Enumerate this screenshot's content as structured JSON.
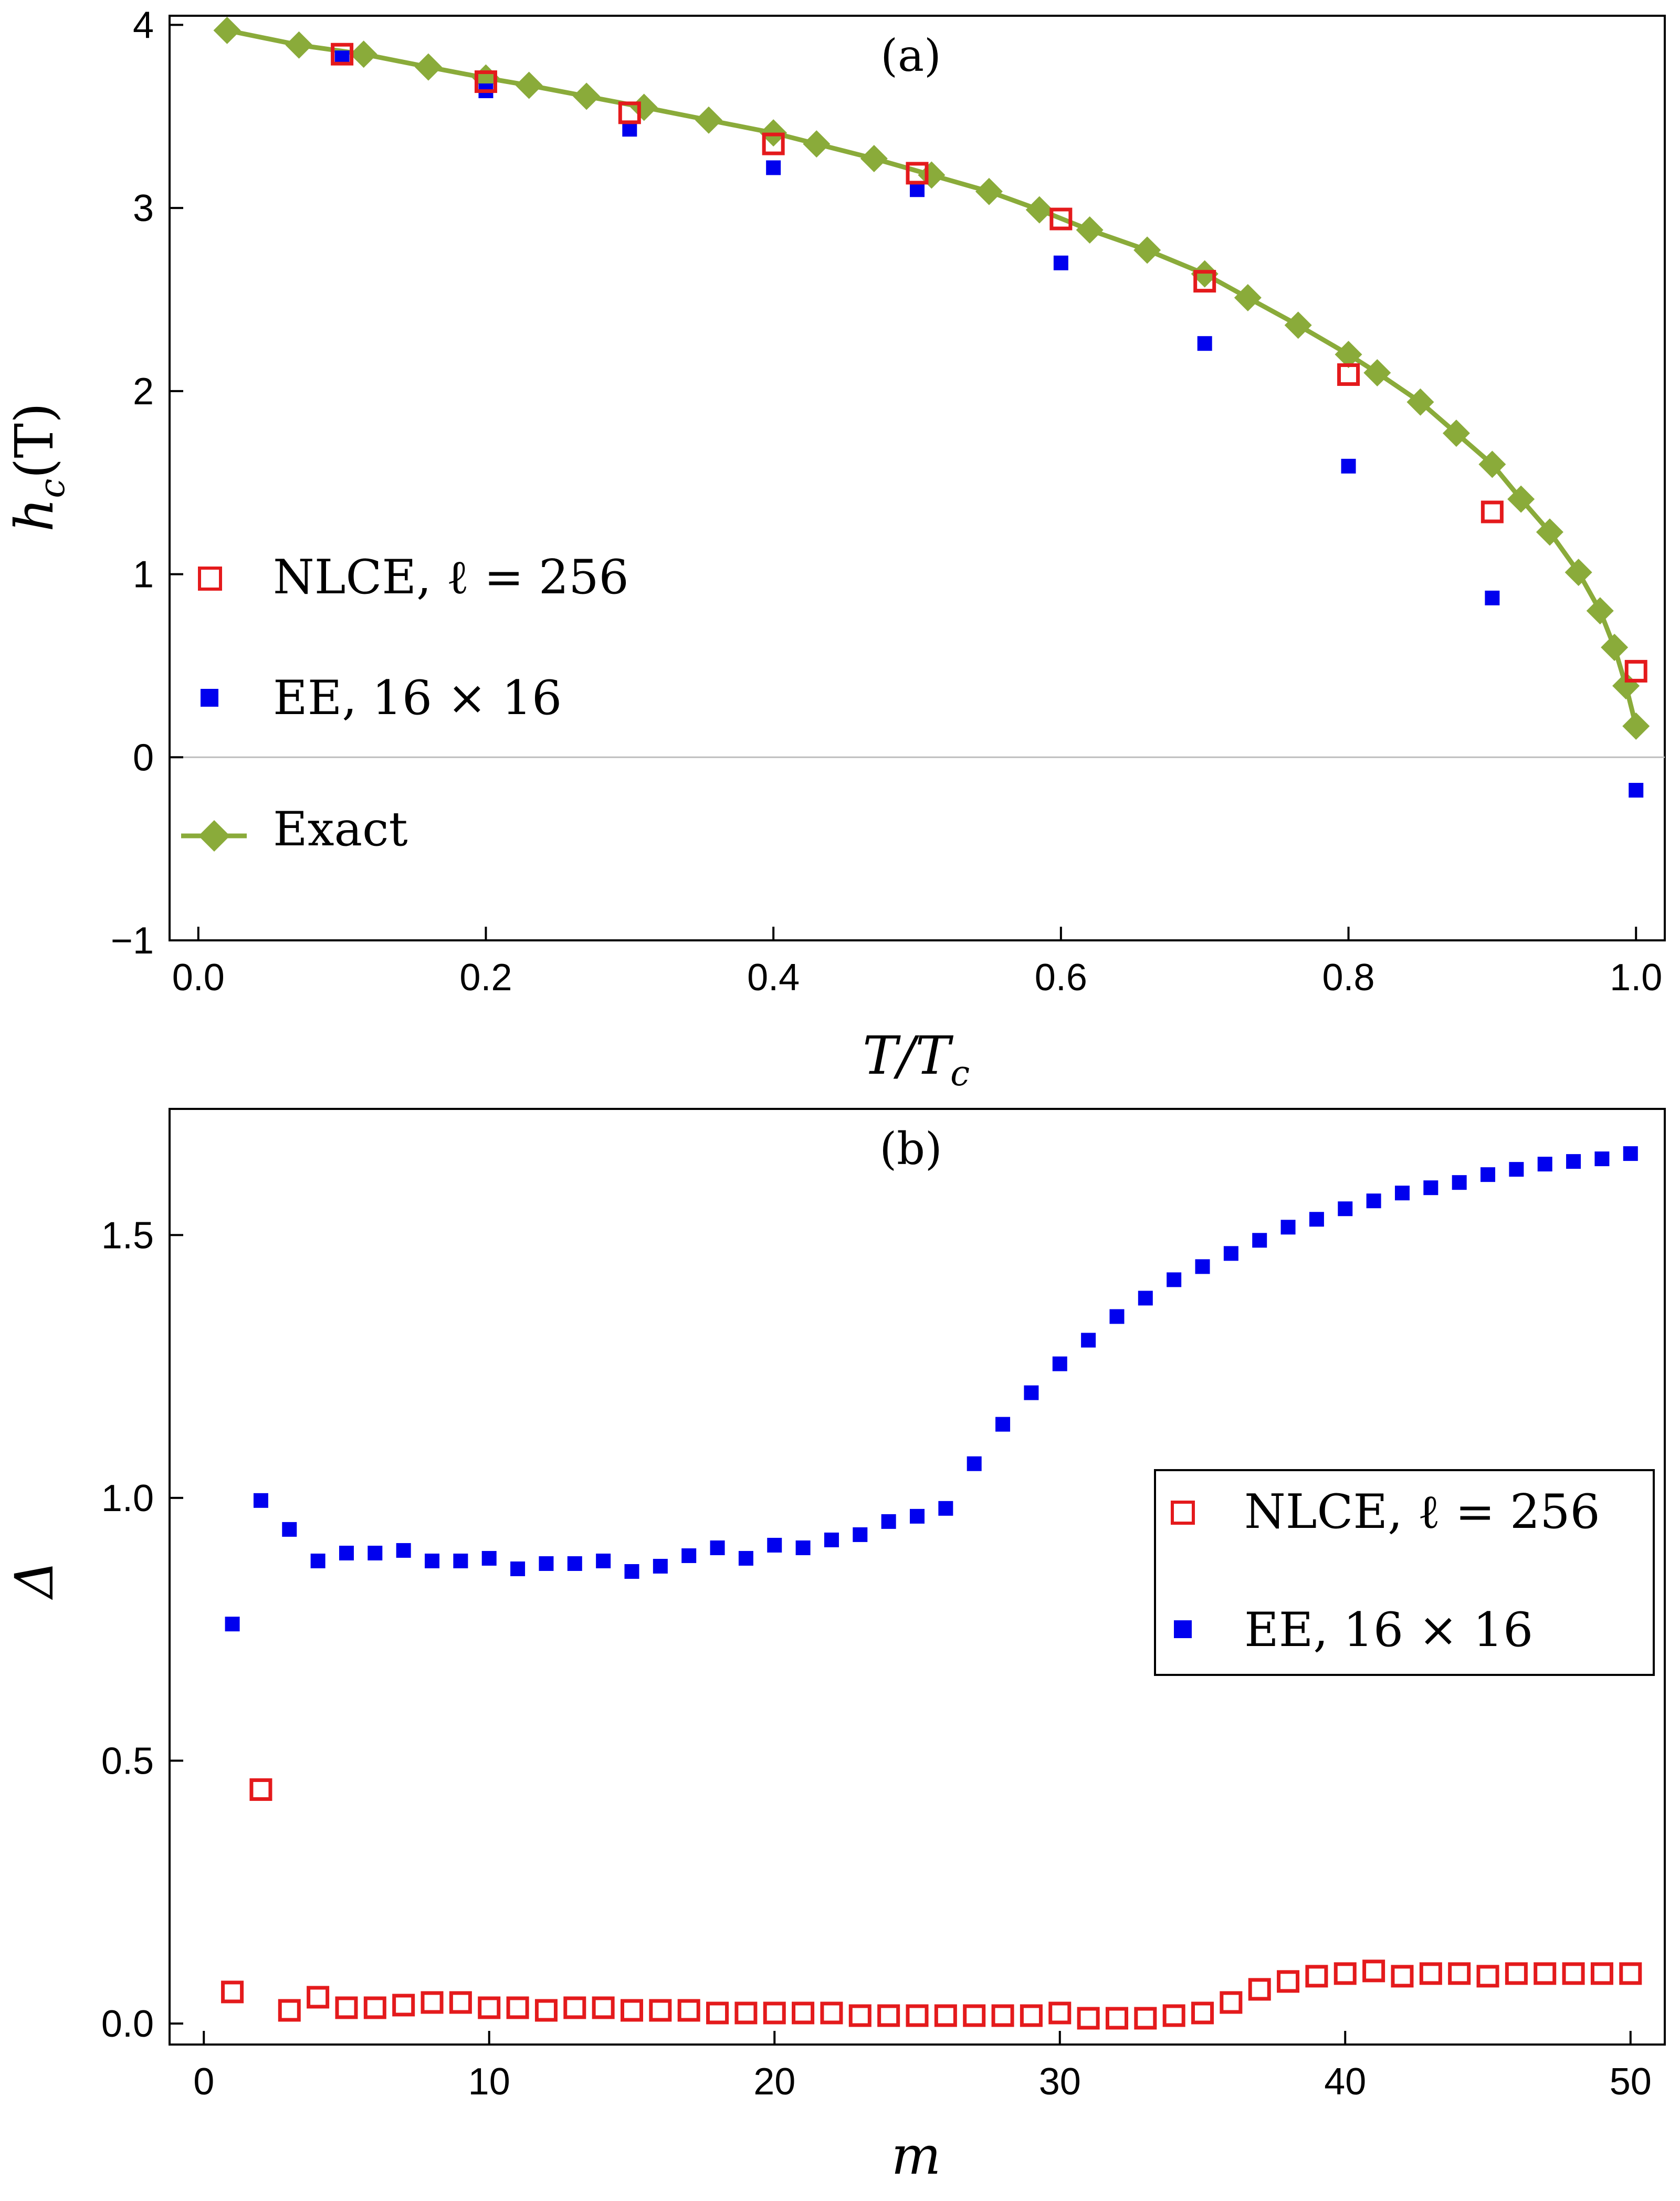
{
  "chart_data": [
    {
      "panel": "(a)",
      "type": "scatter",
      "xlabel": "T/T_c",
      "xlabel_parts": {
        "main": "T/T",
        "sub": "c"
      },
      "ylabel": "h_c(T)",
      "ylabel_parts": {
        "h": "h",
        "sub": "c",
        "arg": "(T)"
      },
      "xlim": [
        -0.02,
        1.02
      ],
      "ylim": [
        -1,
        4.05
      ],
      "xticks": [
        0.0,
        0.2,
        0.4,
        0.6,
        0.8,
        1.0
      ],
      "xtick_labels": [
        "0.0",
        "0.2",
        "0.4",
        "0.6",
        "0.8",
        "1.0"
      ],
      "yticks": [
        -1,
        0,
        1,
        2,
        3,
        4
      ],
      "ytick_labels": [
        "−1",
        "0",
        "1",
        "2",
        "3",
        "4"
      ],
      "zero_line": true,
      "legend_position": "middle-left",
      "series": [
        {
          "name": "NLCE, ℓ = 256",
          "label_text": "NLCE, ℓ = 256",
          "marker": "open-square",
          "color": "#e41a1c",
          "x": [
            0.1,
            0.2,
            0.3,
            0.4,
            0.5,
            0.6,
            0.7,
            0.8,
            0.9,
            1.0
          ],
          "y": [
            3.84,
            3.69,
            3.52,
            3.35,
            3.19,
            2.94,
            2.6,
            2.09,
            1.34,
            0.47
          ]
        },
        {
          "name": "EE, 16 × 16",
          "label_text": "EE, 16 × 16",
          "marker": "filled-square",
          "color": "#0000ee",
          "x": [
            0.1,
            0.2,
            0.3,
            0.4,
            0.5,
            0.6,
            0.7,
            0.8,
            0.9,
            1.0
          ],
          "y": [
            3.82,
            3.64,
            3.43,
            3.22,
            3.1,
            2.7,
            2.26,
            1.59,
            0.87,
            -0.18
          ]
        },
        {
          "name": "Exact",
          "label_text": "Exact",
          "marker": "diamond-line",
          "color": "#8aab3a",
          "x": [
            0.02,
            0.07,
            0.115,
            0.16,
            0.2,
            0.23,
            0.27,
            0.31,
            0.355,
            0.4,
            0.43,
            0.47,
            0.51,
            0.55,
            0.585,
            0.62,
            0.66,
            0.7,
            0.73,
            0.765,
            0.8,
            0.82,
            0.85,
            0.875,
            0.9,
            0.92,
            0.94,
            0.96,
            0.975,
            0.985,
            0.993,
            1.0
          ],
          "y": [
            3.97,
            3.89,
            3.84,
            3.77,
            3.71,
            3.67,
            3.61,
            3.55,
            3.48,
            3.41,
            3.35,
            3.27,
            3.18,
            3.09,
            2.99,
            2.88,
            2.77,
            2.64,
            2.51,
            2.36,
            2.2,
            2.1,
            1.94,
            1.77,
            1.6,
            1.41,
            1.23,
            1.01,
            0.8,
            0.6,
            0.39,
            0.17
          ]
        }
      ]
    },
    {
      "panel": "(b)",
      "type": "scatter",
      "xlabel": "m",
      "ylabel": "Δ",
      "xlim": [
        -1.2,
        51.2
      ],
      "ylim": [
        -0.04,
        1.74
      ],
      "xticks": [
        0,
        10,
        20,
        30,
        40,
        50
      ],
      "xtick_labels": [
        "0",
        "10",
        "20",
        "30",
        "40",
        "50"
      ],
      "yticks": [
        0.0,
        0.5,
        1.0,
        1.5
      ],
      "ytick_labels": [
        "0.0",
        "0.5",
        "1.0",
        "1.5"
      ],
      "legend_position": "middle-right",
      "series": [
        {
          "name": "NLCE, ℓ = 256",
          "label_text": "NLCE, ℓ = 256",
          "marker": "open-square",
          "color": "#e41a1c",
          "x": [
            1,
            2,
            3,
            4,
            5,
            6,
            7,
            8,
            9,
            10,
            11,
            12,
            13,
            14,
            15,
            16,
            17,
            18,
            19,
            20,
            21,
            22,
            23,
            24,
            25,
            26,
            27,
            28,
            29,
            30,
            31,
            32,
            33,
            34,
            35,
            36,
            37,
            38,
            39,
            40,
            41,
            42,
            43,
            44,
            45,
            46,
            47,
            48,
            49,
            50
          ],
          "y": [
            0.06,
            0.445,
            0.025,
            0.05,
            0.03,
            0.03,
            0.035,
            0.04,
            0.04,
            0.03,
            0.03,
            0.025,
            0.03,
            0.03,
            0.025,
            0.025,
            0.025,
            0.02,
            0.02,
            0.02,
            0.02,
            0.02,
            0.015,
            0.015,
            0.015,
            0.015,
            0.015,
            0.015,
            0.015,
            0.02,
            0.01,
            0.01,
            0.01,
            0.015,
            0.02,
            0.04,
            0.065,
            0.08,
            0.09,
            0.095,
            0.1,
            0.09,
            0.095,
            0.095,
            0.09,
            0.095,
            0.095,
            0.095,
            0.095,
            0.095
          ]
        },
        {
          "name": "EE, 16 × 16",
          "label_text": "EE, 16 × 16",
          "marker": "filled-square",
          "color": "#0000ee",
          "x": [
            1,
            2,
            3,
            4,
            5,
            6,
            7,
            8,
            9,
            10,
            11,
            12,
            13,
            14,
            15,
            16,
            17,
            18,
            19,
            20,
            21,
            22,
            23,
            24,
            25,
            26,
            27,
            28,
            29,
            30,
            31,
            32,
            33,
            34,
            35,
            36,
            37,
            38,
            39,
            40,
            41,
            42,
            43,
            44,
            45,
            46,
            47,
            48,
            49,
            50
          ],
          "y": [
            0.76,
            0.995,
            0.94,
            0.88,
            0.895,
            0.895,
            0.9,
            0.88,
            0.88,
            0.885,
            0.865,
            0.875,
            0.875,
            0.88,
            0.86,
            0.87,
            0.89,
            0.905,
            0.885,
            0.91,
            0.905,
            0.92,
            0.93,
            0.955,
            0.965,
            0.98,
            1.065,
            1.14,
            1.2,
            1.255,
            1.3,
            1.345,
            1.38,
            1.415,
            1.44,
            1.465,
            1.49,
            1.515,
            1.53,
            1.55,
            1.565,
            1.58,
            1.59,
            1.6,
            1.615,
            1.625,
            1.635,
            1.64,
            1.645,
            1.655
          ]
        }
      ]
    }
  ]
}
